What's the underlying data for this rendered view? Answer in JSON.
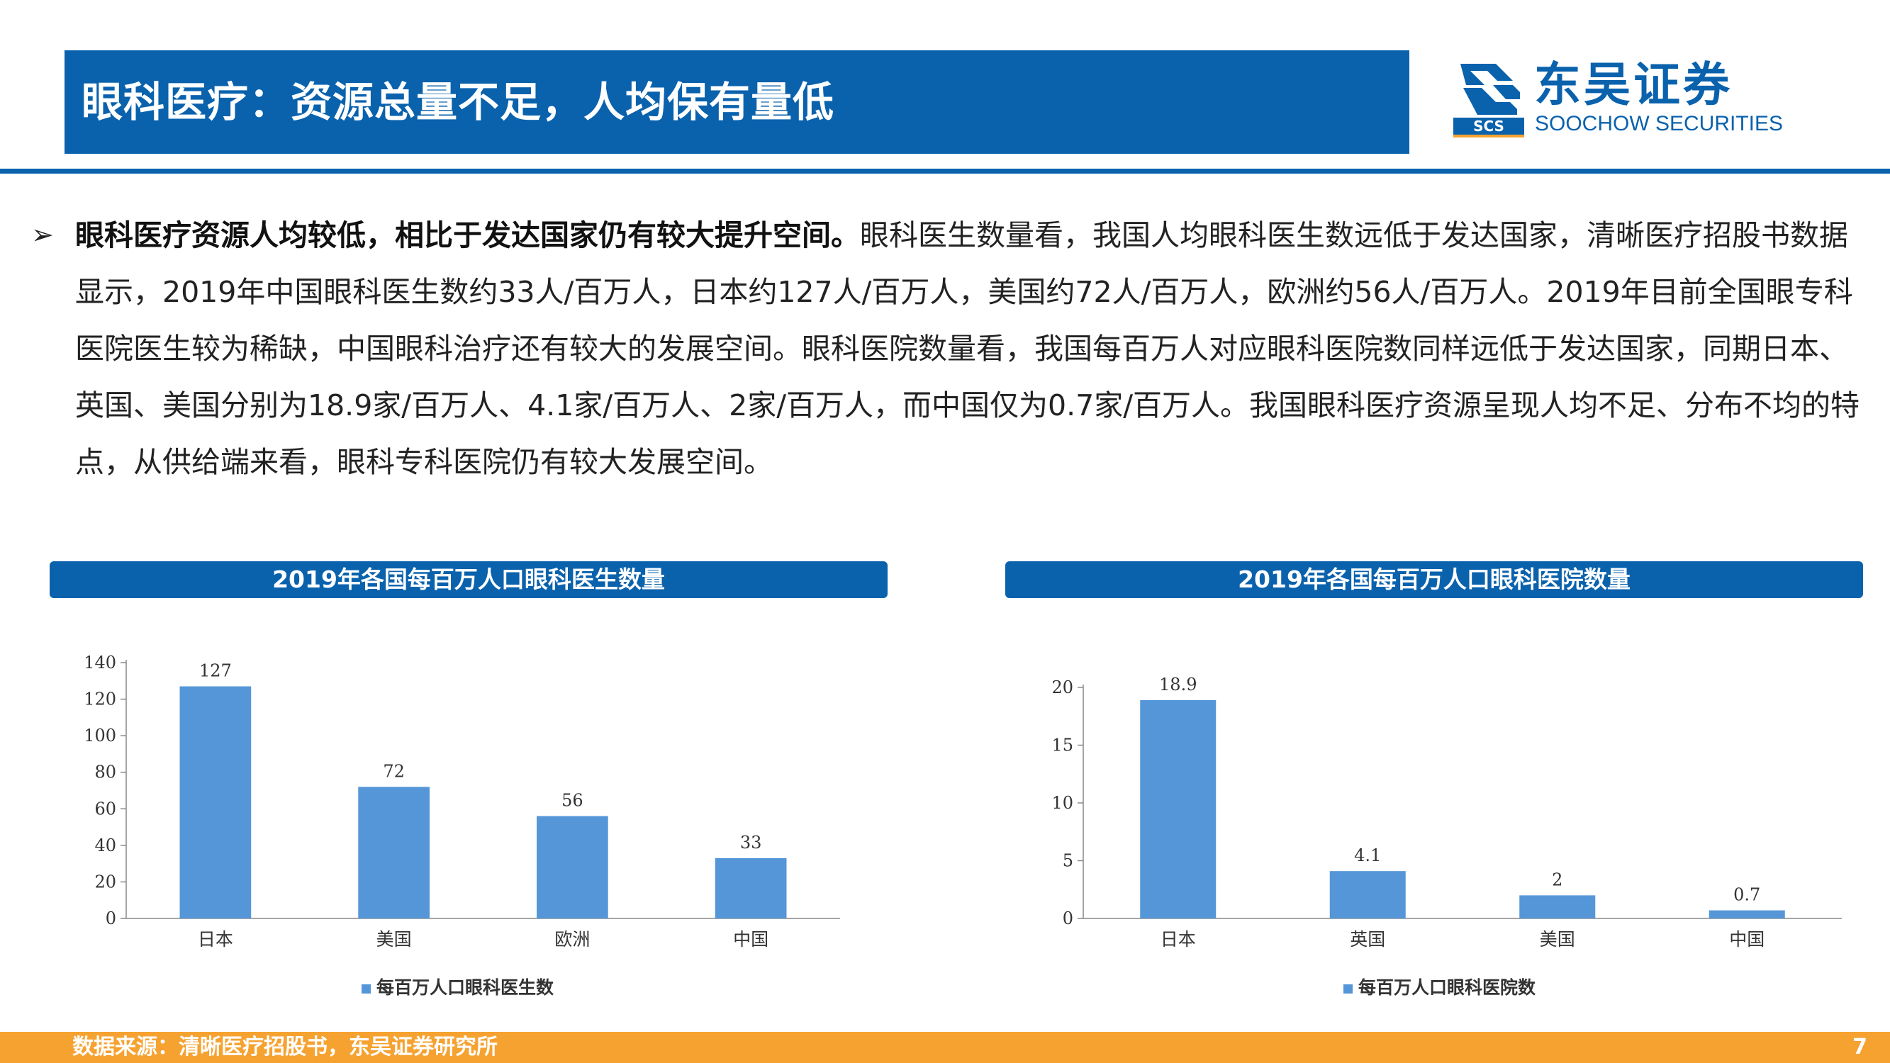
{
  "header": {
    "title": "眼科医疗：资源总量不足，人均保有量低",
    "logo_cn": "东吴证券",
    "logo_en": "SOOCHOW SECURITIES",
    "logo_mark_text": "SCS"
  },
  "body": {
    "bullet_lead": "眼科医疗资源人均较低，相比于发达国家仍有较大提升空间。",
    "bullet_text": "眼科医生数量看，我国人均眼科医生数远低于发达国家，清晰医疗招股书数据显示，2019年中国眼科医生数约33人/百万人，日本约127人/百万人，美国约72人/百万人，欧洲约56人/百万人。2019年目前全国眼专科医院医生较为稀缺，中国眼科治疗还有较大的发展空间。眼科医院数量看，我国每百万人对应眼科医院数同样远低于发达国家，同期日本、英国、美国分别为18.9家/百万人、4.1家/百万人、2家/百万人，而中国仅为0.7家/百万人。我国眼科医疗资源呈现人均不足、分布不均的特点，从供给端来看，眼科专科医院仍有较大发展空间。"
  },
  "chart_data": [
    {
      "type": "bar",
      "title": "2019年各国每百万人口眼科医生数量",
      "categories": [
        "日本",
        "美国",
        "欧洲",
        "中国"
      ],
      "series": [
        {
          "name": "每百万人口眼科医生数",
          "values": [
            127,
            72,
            56,
            33
          ]
        }
      ],
      "ylim": [
        0,
        140
      ],
      "yticks": [
        0,
        20,
        40,
        60,
        80,
        100,
        120,
        140
      ],
      "data_labels": [
        "127",
        "72",
        "56",
        "33"
      ],
      "bar_color": "#5596d8",
      "legend_position": "bottom",
      "grid": false
    },
    {
      "type": "bar",
      "title": "2019年各国每百万人口眼科医院数量",
      "categories": [
        "日本",
        "英国",
        "美国",
        "中国"
      ],
      "series": [
        {
          "name": "每百万人口眼科医院数",
          "values": [
            18.9,
            4.1,
            2,
            0.7
          ]
        }
      ],
      "ylim": [
        0,
        20
      ],
      "yticks": [
        0,
        5,
        10,
        15,
        20
      ],
      "data_labels": [
        "18.9",
        "4.1",
        "2",
        "0.7"
      ],
      "bar_color": "#5596d8",
      "legend_position": "bottom",
      "grid": false
    }
  ],
  "footer": {
    "source": "数据来源：清晰医疗招股书，东吴证券研究所",
    "page": "7"
  },
  "colors": {
    "brand": "#0a62ad",
    "footer": "#f6a230",
    "bar": "#5596d8"
  }
}
